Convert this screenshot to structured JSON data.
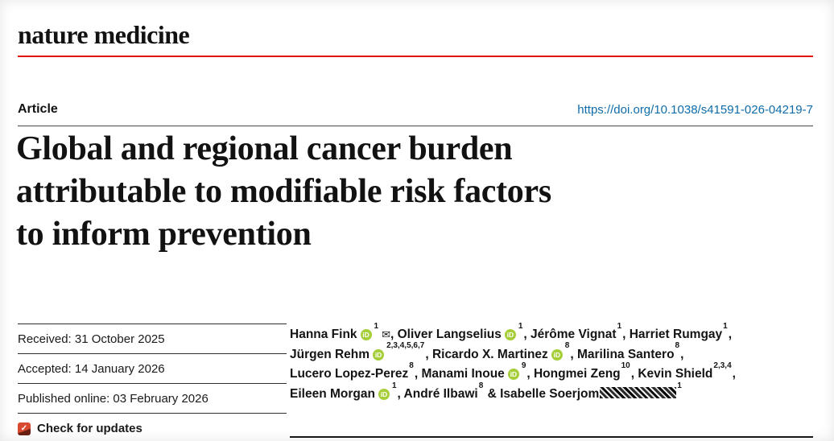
{
  "journal": {
    "logo_text": "nature medicine"
  },
  "header": {
    "article_label": "Article",
    "doi": "https://doi.org/10.1038/s41591-026-04219-7"
  },
  "article": {
    "title_lines": [
      "Global and regional cancer burden",
      "attributable to modifiable risk factors",
      "to inform prevention"
    ]
  },
  "meta": {
    "items": [
      "Received: 31 October 2025",
      "Accepted: 14 January 2026",
      "Published online: 03 February 2026"
    ],
    "check_for_updates": "Check for updates"
  },
  "authors": {
    "lines": [
      [
        {
          "t": "text",
          "v": "Hanna Fink"
        },
        {
          "t": "orcid"
        },
        {
          "t": "sup",
          "v": "1"
        },
        {
          "t": "email"
        },
        {
          "t": "text",
          "v": ", Oliver Langselius"
        },
        {
          "t": "orcid"
        },
        {
          "t": "sup",
          "v": "1"
        },
        {
          "t": "text",
          "v": ", Jérôme Vignat"
        },
        {
          "t": "sup",
          "v": "1"
        },
        {
          "t": "text",
          "v": ", Harriet Rumgay"
        },
        {
          "t": "sup",
          "v": "1"
        },
        {
          "t": "text",
          "v": ","
        }
      ],
      [
        {
          "t": "text",
          "v": "Jürgen Rehm"
        },
        {
          "t": "orcid"
        },
        {
          "t": "sup",
          "v": "2,3,4,5,6,7"
        },
        {
          "t": "text",
          "v": ", Ricardo X. Martinez"
        },
        {
          "t": "orcid"
        },
        {
          "t": "sup",
          "v": "8"
        },
        {
          "t": "text",
          "v": ", Marilina Santero"
        },
        {
          "t": "sup",
          "v": "8"
        },
        {
          "t": "text",
          "v": ","
        }
      ],
      [
        {
          "t": "text",
          "v": "Lucero Lopez-Perez"
        },
        {
          "t": "sup",
          "v": "8"
        },
        {
          "t": "text",
          "v": ", Manami Inoue"
        },
        {
          "t": "orcid"
        },
        {
          "t": "sup",
          "v": "9"
        },
        {
          "t": "text",
          "v": ", Hongmei Zeng"
        },
        {
          "t": "sup",
          "v": "10"
        },
        {
          "t": "text",
          "v": ", Kevin Shield"
        },
        {
          "t": "sup",
          "v": "2,3,4"
        },
        {
          "t": "text",
          "v": ","
        }
      ],
      [
        {
          "t": "text",
          "v": "Eileen Morgan"
        },
        {
          "t": "orcid"
        },
        {
          "t": "sup",
          "v": "1"
        },
        {
          "t": "text",
          "v": ", André Ilbawi"
        },
        {
          "t": "sup",
          "v": "8"
        },
        {
          "t": "text",
          "v": " & Isabelle Soerjom"
        },
        {
          "t": "redact"
        },
        {
          "t": "sup",
          "v": "1"
        }
      ]
    ]
  },
  "icons": {
    "orcid_label": "iD",
    "email_glyph": "✉",
    "crossmark_glyph": "✓"
  },
  "colors": {
    "brand_red": "#e3120b",
    "link_blue": "#0e6caa",
    "orcid_green": "#a6ce39"
  }
}
